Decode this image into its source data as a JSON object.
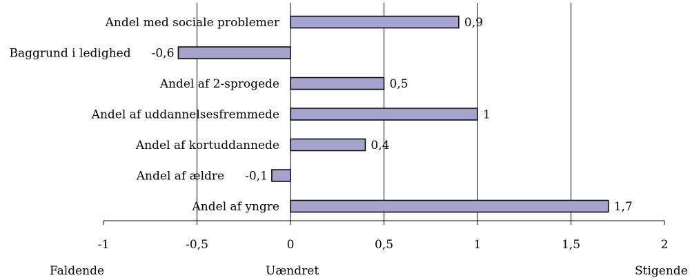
{
  "chart_data": {
    "type": "bar",
    "orientation": "horizontal",
    "categories": [
      "Andel med sociale problemer",
      "Baggrund i ledighed",
      "Andel af 2-sprogede",
      "Andel af uddannelsesfremmede",
      "Andel af kortuddannede",
      "Andel af ældre",
      "Andel af yngre"
    ],
    "values": [
      0.9,
      -0.6,
      0.5,
      1,
      0.4,
      -0.1,
      1.7
    ],
    "value_labels": [
      "0,9",
      "-0,6",
      "0,5",
      "1",
      "0,4",
      "-0,1",
      "1,7"
    ],
    "xlim": [
      -1,
      2
    ],
    "x_ticks": [
      -1,
      -0.5,
      0,
      0.5,
      1,
      1.5,
      2
    ],
    "x_tick_labels": [
      "-1",
      "-0,5",
      "0",
      "0,5",
      "1",
      "1,5",
      "2"
    ],
    "grid": "vertical",
    "bar_color": "#a3a3cc",
    "bar_edge_color": "#000000",
    "bottom_annotations": {
      "left": "Faldende",
      "center": "Uændret",
      "right": "Stigende"
    }
  }
}
